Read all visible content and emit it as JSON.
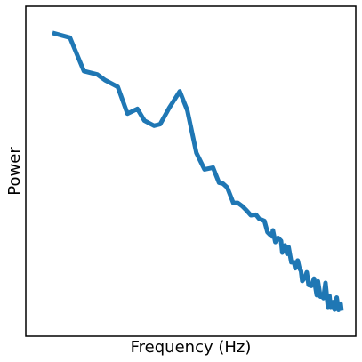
{
  "chart_data": {
    "type": "line",
    "title": "",
    "xlabel": "Frequency (Hz)",
    "ylabel": "Power",
    "x_scale": "linear",
    "y_scale": "log",
    "xticks": [],
    "yticks": [],
    "grid": false,
    "legend": null,
    "xlim": [
      0,
      1
    ],
    "ylim": [
      0,
      1
    ],
    "colors": {
      "line": "#1f77b4",
      "axes": "#000000",
      "background": "#ffffff"
    },
    "series": [
      {
        "x": [
          0.044,
          0.102,
          0.148,
          0.192,
          0.218,
          0.26,
          0.292,
          0.325,
          0.348,
          0.38,
          0.4,
          0.414,
          0.43,
          0.465,
          0.49,
          0.52,
          0.547,
          0.575,
          0.595,
          0.608,
          0.622,
          0.642,
          0.657,
          0.672,
          0.686,
          0.7,
          0.717,
          0.727,
          0.745,
          0.755,
          0.763,
          0.77,
          0.773,
          0.781,
          0.79,
          0.8,
          0.804,
          0.813,
          0.82,
          0.825,
          0.834,
          0.843,
          0.847,
          0.855,
          0.861,
          0.866,
          0.87,
          0.88,
          0.885,
          0.891,
          0.9,
          0.909,
          0.918,
          0.922,
          0.93,
          0.938,
          0.94,
          0.947,
          0.955,
          0.96,
          0.964,
          0.972,
          0.977,
          0.984,
          0.99,
          0.997,
          1.0
        ],
        "y": [
          0.956,
          0.94,
          0.829,
          0.818,
          0.799,
          0.777,
          0.688,
          0.704,
          0.665,
          0.648,
          0.653,
          0.678,
          0.707,
          0.762,
          0.699,
          0.558,
          0.503,
          0.509,
          0.459,
          0.456,
          0.443,
          0.392,
          0.392,
          0.381,
          0.367,
          0.351,
          0.353,
          0.34,
          0.332,
          0.295,
          0.287,
          0.281,
          0.301,
          0.262,
          0.276,
          0.266,
          0.227,
          0.251,
          0.223,
          0.245,
          0.195,
          0.195,
          0.175,
          0.201,
          0.175,
          0.166,
          0.133,
          0.146,
          0.162,
          0.12,
          0.117,
          0.141,
          0.086,
          0.132,
          0.081,
          0.083,
          0.076,
          0.127,
          0.047,
          0.084,
          0.047,
          0.063,
          0.038,
          0.078,
          0.037,
          0.058,
          0.034
        ]
      }
    ]
  }
}
